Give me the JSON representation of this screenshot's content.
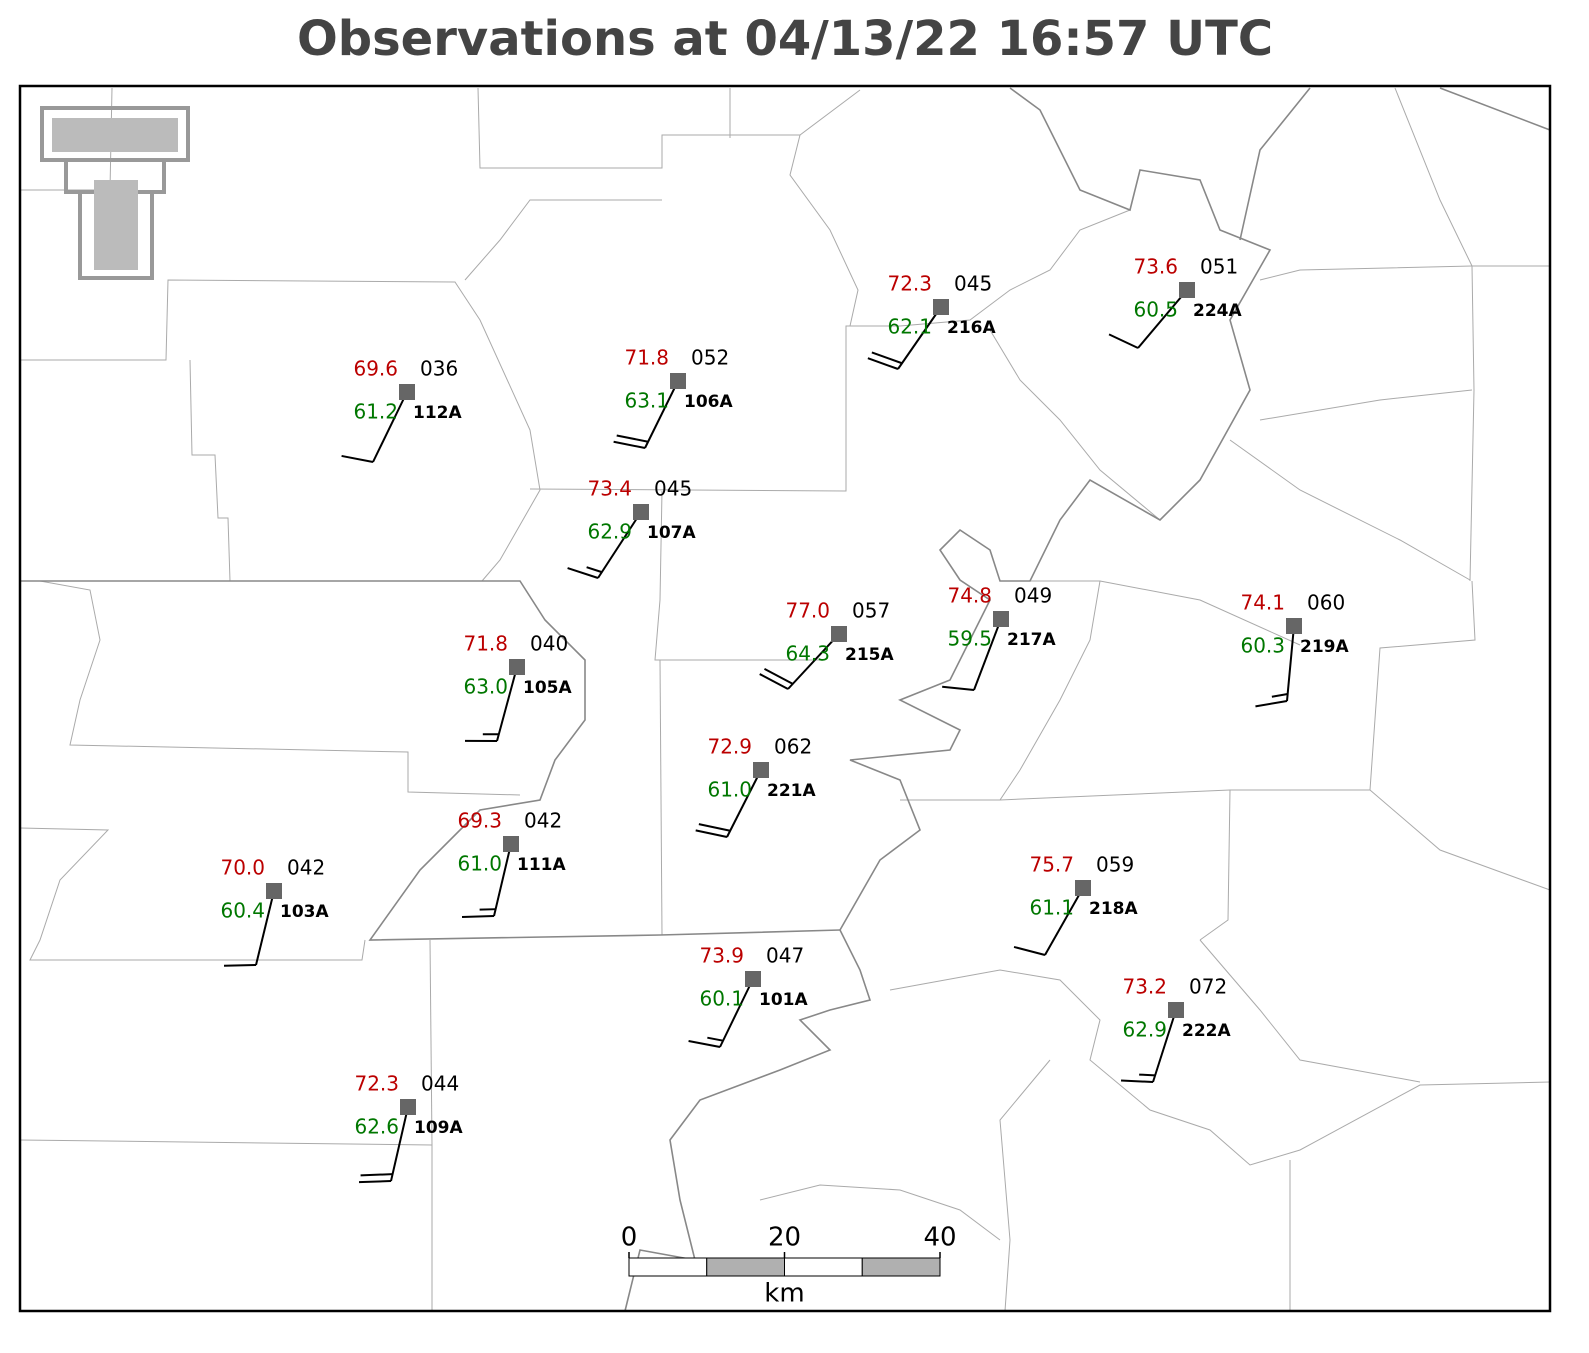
{
  "title": "Observations at 04/13/22 16:57 UTC",
  "stations": [
    {
      "id": "112A",
      "temperature": "69.6",
      "dewpoint": "61.2",
      "pressure": "036"
    },
    {
      "id": "106A",
      "temperature": "71.8",
      "dewpoint": "63.1",
      "pressure": "052"
    },
    {
      "id": "216A",
      "temperature": "72.3",
      "dewpoint": "62.1",
      "pressure": "045"
    },
    {
      "id": "224A",
      "temperature": "73.6",
      "dewpoint": "60.5",
      "pressure": "051"
    },
    {
      "id": "107A",
      "temperature": "73.4",
      "dewpoint": "62.9",
      "pressure": "045"
    },
    {
      "id": "105A",
      "temperature": "71.8",
      "dewpoint": "63.0",
      "pressure": "040"
    },
    {
      "id": "215A",
      "temperature": "77.0",
      "dewpoint": "64.3",
      "pressure": "057"
    },
    {
      "id": "217A",
      "temperature": "74.8",
      "dewpoint": "59.5",
      "pressure": "049"
    },
    {
      "id": "219A",
      "temperature": "74.1",
      "dewpoint": "60.3",
      "pressure": "060"
    },
    {
      "id": "221A",
      "temperature": "72.9",
      "dewpoint": "61.0",
      "pressure": "062"
    },
    {
      "id": "111A",
      "temperature": "69.3",
      "dewpoint": "61.0",
      "pressure": "042"
    },
    {
      "id": "103A",
      "temperature": "70.0",
      "dewpoint": "60.4",
      "pressure": "042"
    },
    {
      "id": "218A",
      "temperature": "75.7",
      "dewpoint": "61.1",
      "pressure": "059"
    },
    {
      "id": "101A",
      "temperature": "73.9",
      "dewpoint": "60.1",
      "pressure": "047"
    },
    {
      "id": "222A",
      "temperature": "73.2",
      "dewpoint": "62.9",
      "pressure": "072"
    },
    {
      "id": "109A",
      "temperature": "72.3",
      "dewpoint": "62.6",
      "pressure": "044"
    }
  ],
  "scale": {
    "ticks": [
      0,
      20,
      40
    ],
    "unit": "km"
  }
}
